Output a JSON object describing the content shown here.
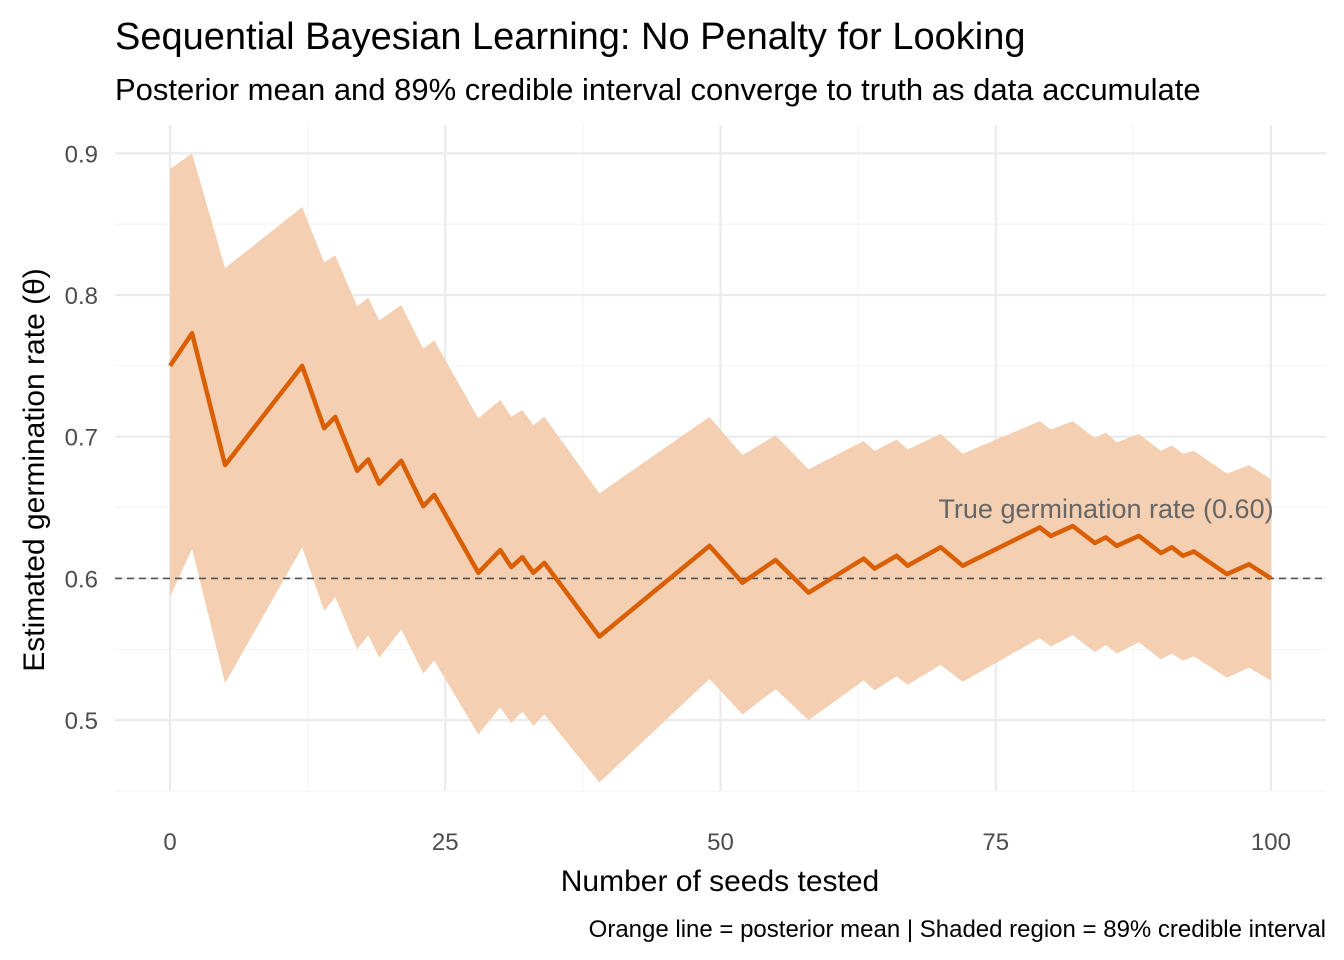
{
  "chart_data": {
    "type": "line",
    "title": "Sequential Bayesian Learning: No Penalty for Looking",
    "subtitle": "Posterior mean and 89% credible interval converge to truth as data accumulate",
    "caption": "Orange line = posterior mean | Shaded region = 89% credible interval",
    "xlabel": "Number of seeds tested",
    "ylabel": "Estimated germination rate (θ)",
    "xlim": [
      -5,
      105
    ],
    "ylim": [
      0.45,
      0.92
    ],
    "x_ticks": [
      "0",
      "25",
      "50",
      "75",
      "100"
    ],
    "x_tick_values": [
      0,
      25,
      50,
      75,
      100
    ],
    "y_ticks": [
      "0.5",
      "0.6",
      "0.7",
      "0.8",
      "0.9"
    ],
    "y_tick_values": [
      0.5,
      0.6,
      0.7,
      0.8,
      0.9
    ],
    "grid": true,
    "line_color": "#D95F02",
    "ribbon_color": "#F4CFB2",
    "reference": {
      "value": 0.6,
      "label": "True germination rate (0.60)",
      "style": "dashed",
      "color": "#555555"
    },
    "x": [
      0,
      2,
      5,
      12,
      14,
      15,
      17,
      18,
      19,
      21,
      23,
      24,
      28,
      30,
      31,
      32,
      33,
      34,
      39,
      49,
      52,
      55,
      58,
      63,
      64,
      66,
      67,
      70,
      72,
      79,
      80,
      82,
      84,
      85,
      86,
      88,
      90,
      91,
      92,
      93,
      96,
      98,
      100
    ],
    "mean": [
      0.75,
      0.773,
      0.68,
      0.75,
      0.706,
      0.714,
      0.676,
      0.684,
      0.667,
      0.683,
      0.651,
      0.659,
      0.604,
      0.62,
      0.608,
      0.615,
      0.604,
      0.611,
      0.559,
      0.623,
      0.597,
      0.613,
      0.59,
      0.614,
      0.607,
      0.616,
      0.609,
      0.622,
      0.609,
      0.636,
      0.63,
      0.637,
      0.625,
      0.629,
      0.623,
      0.63,
      0.618,
      0.622,
      0.616,
      0.619,
      0.603,
      0.61,
      0.6
    ],
    "lower": [
      0.587,
      0.621,
      0.526,
      0.622,
      0.577,
      0.587,
      0.55,
      0.56,
      0.544,
      0.564,
      0.533,
      0.542,
      0.49,
      0.509,
      0.498,
      0.506,
      0.496,
      0.504,
      0.456,
      0.529,
      0.504,
      0.522,
      0.5,
      0.528,
      0.521,
      0.531,
      0.525,
      0.539,
      0.527,
      0.558,
      0.552,
      0.56,
      0.548,
      0.553,
      0.547,
      0.555,
      0.543,
      0.547,
      0.542,
      0.545,
      0.53,
      0.537,
      0.528
    ],
    "upper": [
      0.889,
      0.9,
      0.819,
      0.862,
      0.823,
      0.828,
      0.792,
      0.798,
      0.782,
      0.793,
      0.762,
      0.768,
      0.713,
      0.726,
      0.714,
      0.719,
      0.708,
      0.714,
      0.66,
      0.714,
      0.687,
      0.701,
      0.677,
      0.697,
      0.69,
      0.698,
      0.691,
      0.702,
      0.688,
      0.711,
      0.705,
      0.711,
      0.699,
      0.703,
      0.696,
      0.702,
      0.69,
      0.694,
      0.688,
      0.69,
      0.674,
      0.68,
      0.67
    ]
  }
}
